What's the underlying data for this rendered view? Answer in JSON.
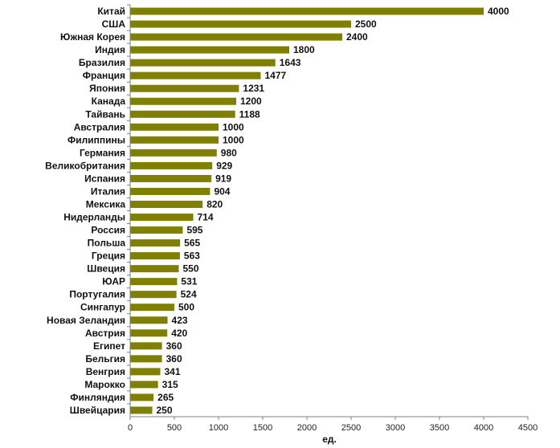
{
  "chart_data": {
    "type": "bar",
    "orientation": "horizontal",
    "categories": [
      "Китай",
      "США",
      "Южная Корея",
      "Индия",
      "Бразилия",
      "Франция",
      "Япония",
      "Канада",
      "Тайвань",
      "Австралия",
      "Филиппины",
      "Германия",
      "Великобритания",
      "Испания",
      "Италия",
      "Мексика",
      "Нидерланды",
      "Россия",
      "Польша",
      "Греция",
      "Швеция",
      "ЮАР",
      "Португалия",
      "Сингапур",
      "Новая Зеландия",
      "Австрия",
      "Египет",
      "Бельгия",
      "Венгрия",
      "Марокко",
      "Финляндия",
      "Швейцария"
    ],
    "values": [
      4000,
      2500,
      2400,
      1800,
      1643,
      1477,
      1231,
      1200,
      1188,
      1000,
      1000,
      980,
      929,
      919,
      904,
      820,
      714,
      595,
      565,
      563,
      550,
      531,
      524,
      500,
      423,
      420,
      360,
      360,
      341,
      315,
      265,
      250
    ],
    "xlabel": "ед.",
    "xlim": [
      0,
      4500
    ],
    "xticks": [
      0,
      500,
      1000,
      1500,
      2000,
      2500,
      3000,
      3500,
      4000,
      4500
    ],
    "grid": false,
    "bar_color": "#808000"
  }
}
